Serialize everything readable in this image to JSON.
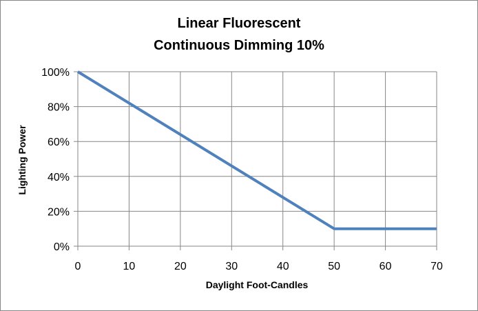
{
  "chart_data": {
    "type": "line",
    "title": [
      "Linear Fluorescent",
      "Continuous Dimming 10%"
    ],
    "xlabel": "Daylight Foot-Candles",
    "ylabel": "Lighting Power",
    "xlim": [
      0,
      70
    ],
    "ylim": [
      0,
      1
    ],
    "x_ticks": [
      "0",
      "10",
      "20",
      "30",
      "40",
      "50",
      "60",
      "70"
    ],
    "y_ticks": [
      "0%",
      "20%",
      "40%",
      "60%",
      "80%",
      "100%"
    ],
    "grid": true,
    "legend": "none",
    "series": [
      {
        "color": "#4f81bd",
        "x": [
          0,
          50,
          70
        ],
        "y": [
          1.0,
          0.1,
          0.1
        ]
      }
    ]
  }
}
